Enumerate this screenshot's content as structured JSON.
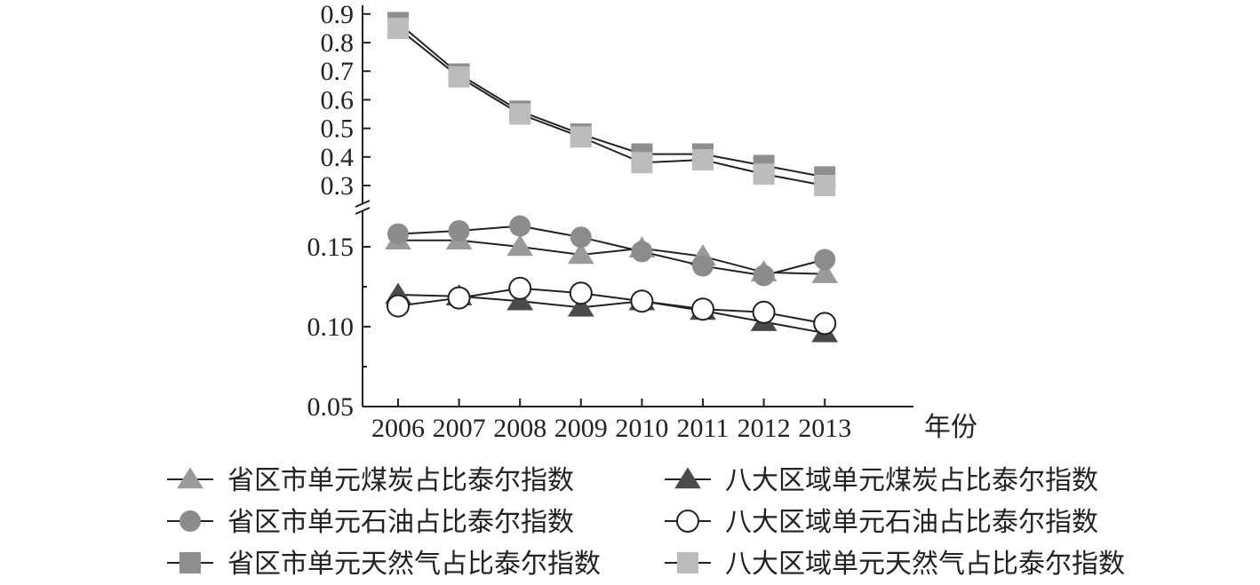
{
  "chart_data": {
    "type": "line",
    "x_unit_label": "年份",
    "x": [
      "2006",
      "2007",
      "2008",
      "2009",
      "2010",
      "2011",
      "2012",
      "2013"
    ],
    "y_axis": {
      "broken": true,
      "lower_ticks": [
        "0.05",
        "0.10",
        "0.15"
      ],
      "lower_range": [
        0.05,
        0.17
      ],
      "upper_ticks": [
        "0.3",
        "0.4",
        "0.5",
        "0.6",
        "0.7",
        "0.8",
        "0.9"
      ],
      "upper_range": [
        0.27,
        0.9
      ]
    },
    "grid": false,
    "legend_placement": "bottom",
    "series": [
      {
        "name": "省区市单元煤炭占比泰尔指数",
        "marker": "triangle",
        "color": "#9a9a9a",
        "hollow": false,
        "values": [
          0.154,
          0.154,
          0.15,
          0.145,
          0.149,
          0.144,
          0.134,
          0.133
        ]
      },
      {
        "name": "八大区域单元煤炭占比泰尔指数",
        "marker": "triangle",
        "color": "#4a4a4a",
        "hollow": false,
        "values": [
          0.12,
          0.119,
          0.116,
          0.112,
          0.116,
          0.11,
          0.103,
          0.096
        ]
      },
      {
        "name": "省区市单元石油占比泰尔指数",
        "marker": "circle",
        "color": "#8c8c8c",
        "hollow": false,
        "values": [
          0.158,
          0.16,
          0.163,
          0.156,
          0.147,
          0.138,
          0.132,
          0.142
        ]
      },
      {
        "name": "八大区域单元石油占比泰尔指数",
        "marker": "circle",
        "color": "#ffffff",
        "hollow": true,
        "values": [
          0.113,
          0.118,
          0.124,
          0.121,
          0.116,
          0.111,
          0.109,
          0.102
        ]
      },
      {
        "name": "省区市单元天然气占比泰尔指数",
        "marker": "square",
        "color": "#8e8e8e",
        "hollow": false,
        "values": [
          0.87,
          0.69,
          0.56,
          0.48,
          0.41,
          0.41,
          0.37,
          0.33
        ]
      },
      {
        "name": "八大区域单元天然气占比泰尔指数",
        "marker": "square",
        "color": "#bcbcbc",
        "hollow": false,
        "values": [
          0.85,
          0.68,
          0.55,
          0.47,
          0.38,
          0.39,
          0.34,
          0.3
        ]
      }
    ]
  }
}
